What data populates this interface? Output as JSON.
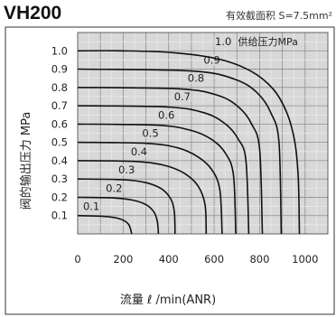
{
  "chart_data": {
    "type": "line",
    "title": "VH200",
    "subtitle": "有效截面积 S=7.5mm²",
    "xlabel": "流量 ℓ /min(ANR)",
    "ylabel": "阀的输出压力 MPa",
    "xlim": [
      0,
      1100
    ],
    "ylim": [
      0,
      1.1
    ],
    "x_ticks": [
      "0",
      "200",
      "400",
      "600",
      "800",
      "1000"
    ],
    "y_ticks": [
      "0.1",
      "0.2",
      "0.3",
      "0.4",
      "0.5",
      "0.6",
      "0.7",
      "0.8",
      "0.9",
      "1.0"
    ],
    "grid": true,
    "legend_note": "供给压力MPa",
    "series": [
      {
        "name": "0.1",
        "label_at": [
          60,
          0.135
        ],
        "points": [
          [
            0,
            0.1
          ],
          [
            100,
            0.097
          ],
          [
            160,
            0.09
          ],
          [
            200,
            0.075
          ],
          [
            225,
            0.05
          ],
          [
            238,
            0
          ]
        ]
      },
      {
        "name": "0.2",
        "label_at": [
          160,
          0.235
        ],
        "points": [
          [
            0,
            0.2
          ],
          [
            150,
            0.197
          ],
          [
            240,
            0.185
          ],
          [
            300,
            0.16
          ],
          [
            335,
            0.12
          ],
          [
            350,
            0.07
          ],
          [
            355,
            0
          ]
        ]
      },
      {
        "name": "0.3",
        "label_at": [
          215,
          0.335
        ],
        "points": [
          [
            0,
            0.3
          ],
          [
            200,
            0.296
          ],
          [
            300,
            0.28
          ],
          [
            370,
            0.245
          ],
          [
            410,
            0.19
          ],
          [
            425,
            0.12
          ],
          [
            428,
            0
          ]
        ]
      },
      {
        "name": "0.4",
        "label_at": [
          270,
          0.435
        ],
        "points": [
          [
            0,
            0.4
          ],
          [
            250,
            0.396
          ],
          [
            380,
            0.375
          ],
          [
            470,
            0.33
          ],
          [
            530,
            0.26
          ],
          [
            560,
            0.16
          ],
          [
            565,
            0
          ]
        ]
      },
      {
        "name": "0.5",
        "label_at": [
          320,
          0.535
        ],
        "points": [
          [
            0,
            0.5
          ],
          [
            300,
            0.495
          ],
          [
            440,
            0.47
          ],
          [
            530,
            0.42
          ],
          [
            590,
            0.35
          ],
          [
            625,
            0.24
          ],
          [
            635,
            0
          ]
        ]
      },
      {
        "name": "0.6",
        "label_at": [
          390,
          0.635
        ],
        "points": [
          [
            0,
            0.6
          ],
          [
            350,
            0.594
          ],
          [
            500,
            0.565
          ],
          [
            590,
            0.515
          ],
          [
            650,
            0.44
          ],
          [
            685,
            0.32
          ],
          [
            695,
            0
          ]
        ]
      },
      {
        "name": "0.7",
        "label_at": [
          460,
          0.735
        ],
        "points": [
          [
            0,
            0.7
          ],
          [
            400,
            0.693
          ],
          [
            560,
            0.66
          ],
          [
            650,
            0.6
          ],
          [
            705,
            0.52
          ],
          [
            740,
            0.4
          ],
          [
            752,
            0
          ]
        ]
      },
      {
        "name": "0.8",
        "label_at": [
          520,
          0.835
        ],
        "points": [
          [
            0,
            0.8
          ],
          [
            450,
            0.792
          ],
          [
            620,
            0.755
          ],
          [
            710,
            0.69
          ],
          [
            765,
            0.6
          ],
          [
            800,
            0.46
          ],
          [
            812,
            0
          ]
        ]
      },
      {
        "name": "0.9",
        "label_at": [
          590,
          0.935
        ],
        "points": [
          [
            0,
            0.9
          ],
          [
            500,
            0.89
          ],
          [
            690,
            0.845
          ],
          [
            790,
            0.77
          ],
          [
            850,
            0.66
          ],
          [
            885,
            0.5
          ],
          [
            895,
            0
          ]
        ]
      },
      {
        "name": "1.0",
        "label_at": [
          640,
          1.035
        ],
        "points": [
          [
            0,
            1.0
          ],
          [
            200,
            1.0
          ],
          [
            420,
            0.99
          ],
          [
            620,
            0.955
          ],
          [
            760,
            0.89
          ],
          [
            860,
            0.79
          ],
          [
            920,
            0.66
          ],
          [
            955,
            0.5
          ],
          [
            970,
            0.3
          ],
          [
            975,
            0
          ]
        ]
      }
    ]
  }
}
